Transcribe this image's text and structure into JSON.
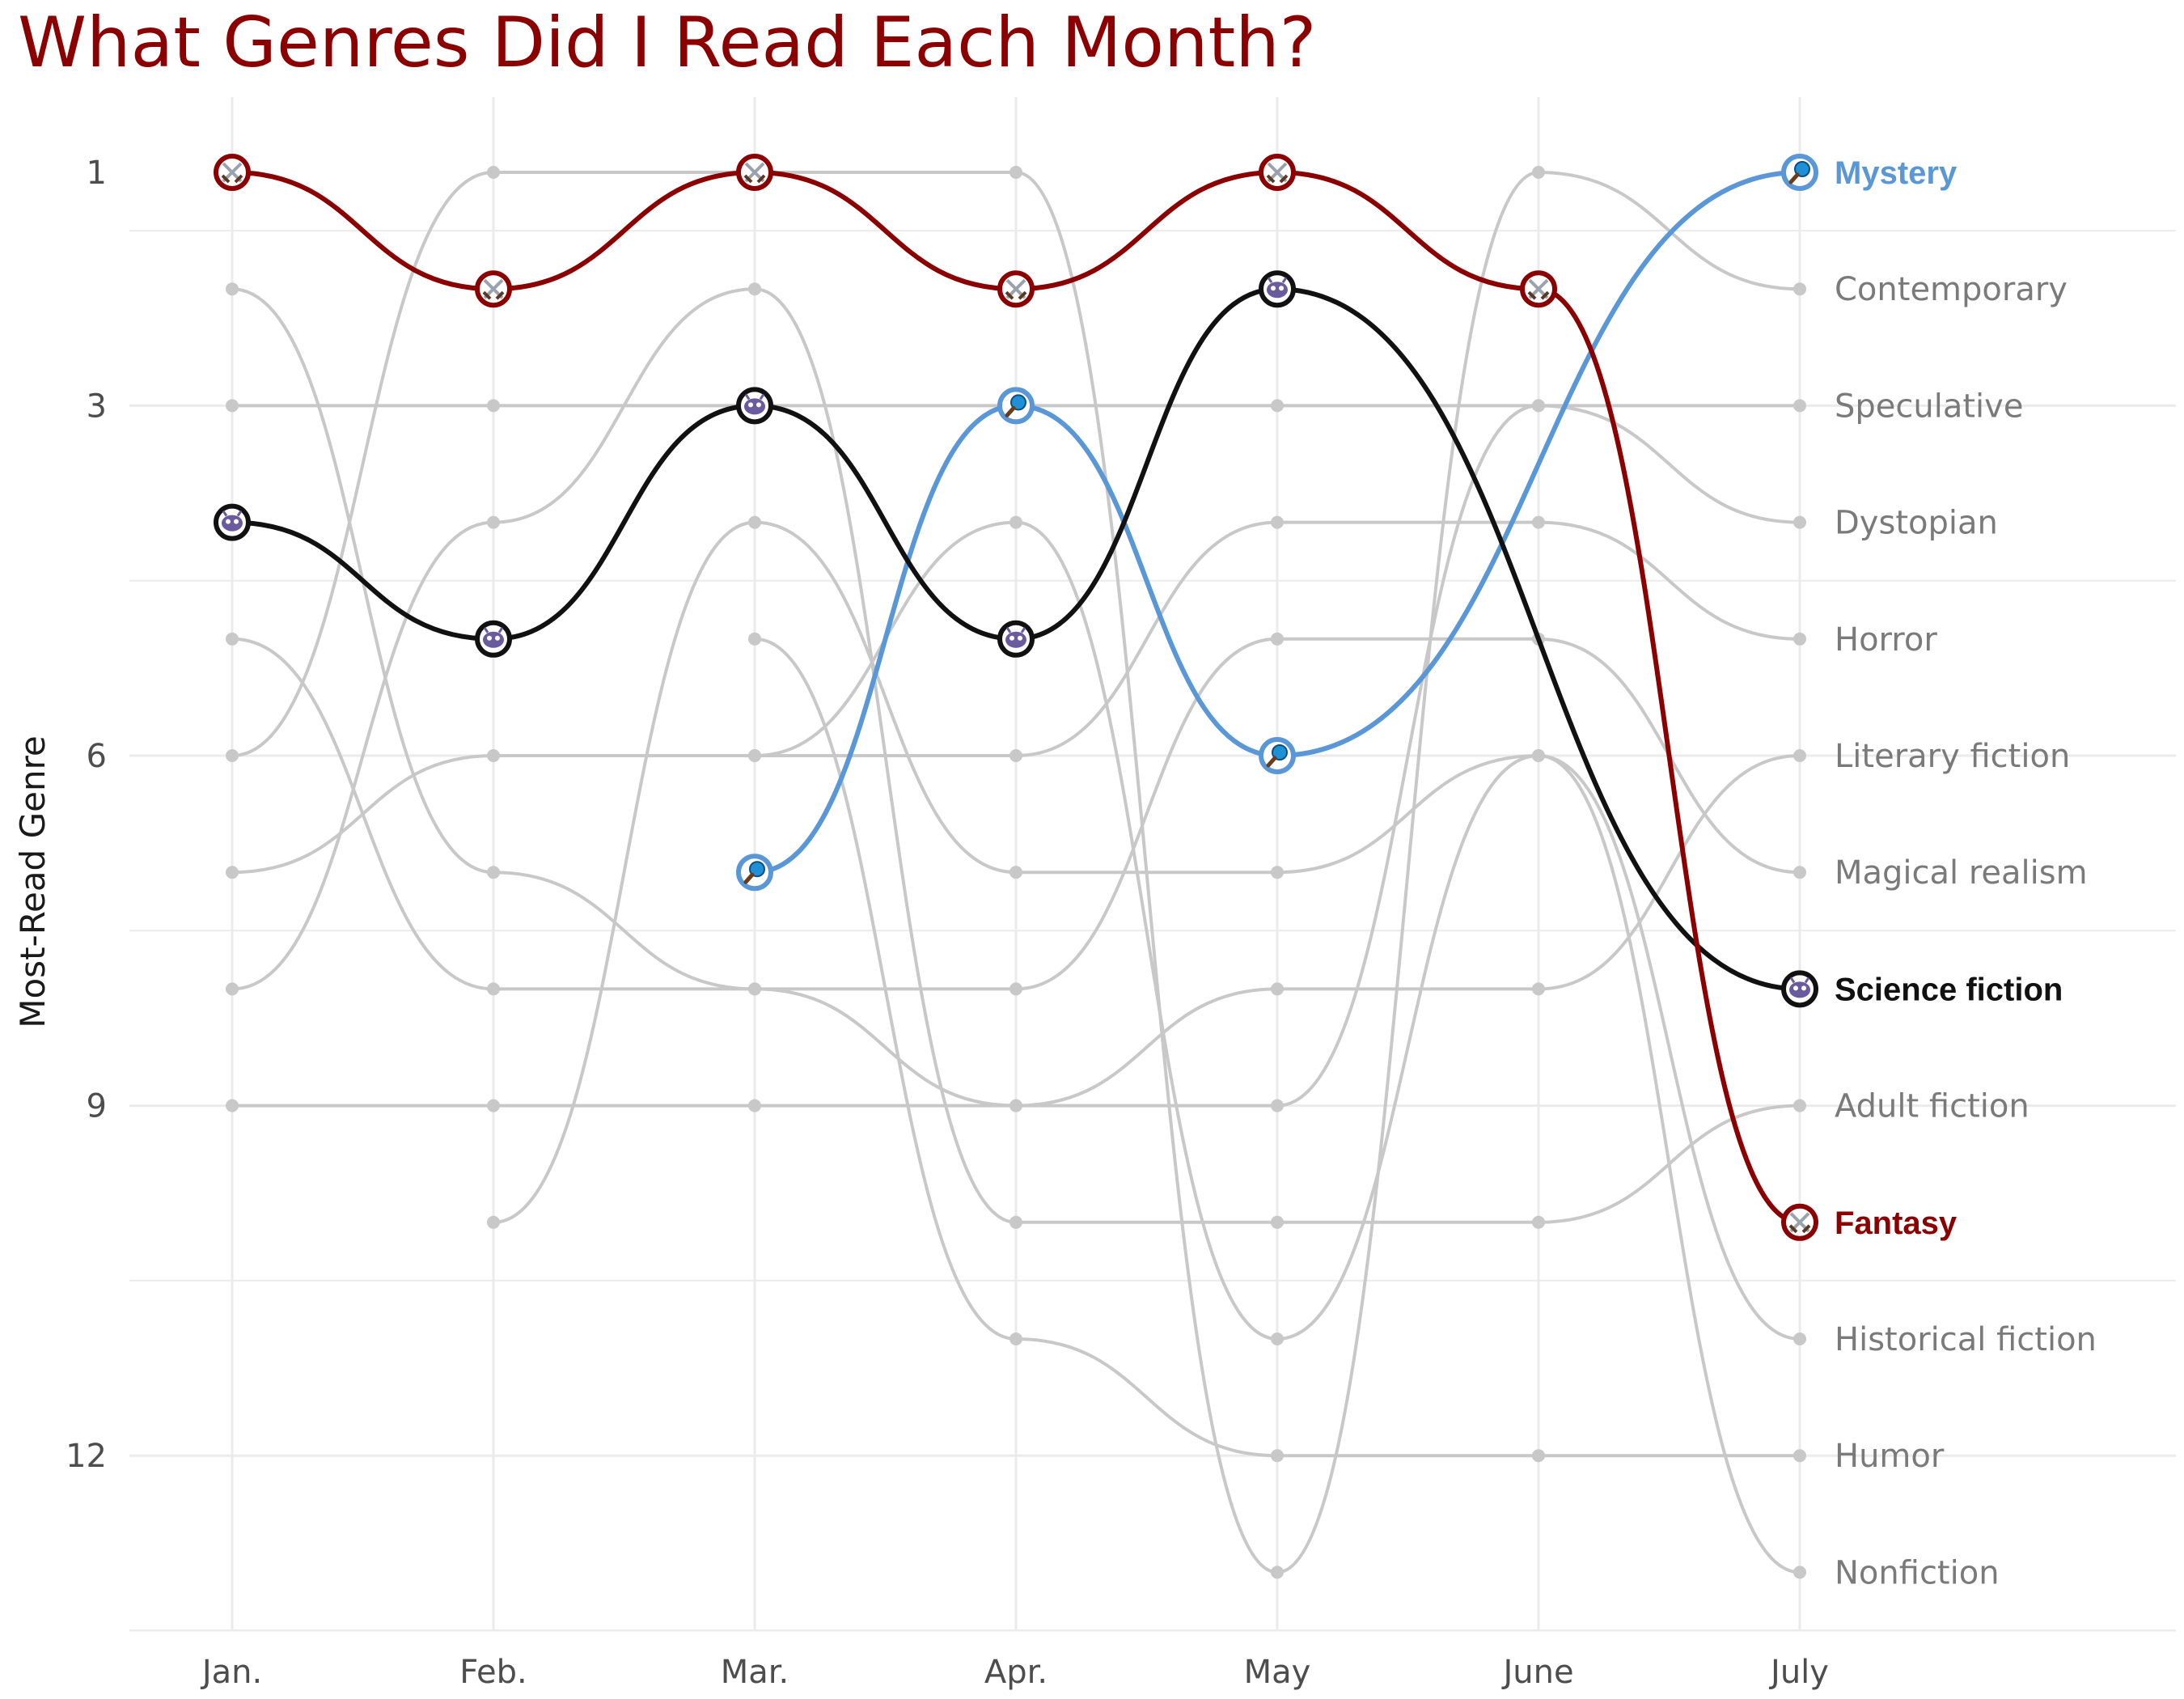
{
  "chart_data": {
    "type": "line",
    "title": "What Genres Did I Read Each Month?",
    "ylabel": "Most-Read Genre",
    "xlabel": "",
    "categories": [
      "Jan.",
      "Feb.",
      "Mar.",
      "Apr.",
      "May",
      "June",
      "July"
    ],
    "ylim": [
      0.5,
      13.5
    ],
    "y_reversed": true,
    "y_ticks": [
      1,
      3,
      6,
      9,
      12
    ],
    "grid": true,
    "colors": {
      "title": "#8b0000",
      "background_series": "#c8c8c8",
      "gridline": "#ebebeb"
    },
    "highlighted": [
      {
        "name": "Mystery",
        "color": "#5a97d6",
        "icon": "magnifying-glass-icon",
        "ranks": [
          null,
          null,
          7,
          3,
          6,
          null,
          1
        ]
      },
      {
        "name": "Science fiction",
        "color": "#111111",
        "icon": "alien-icon",
        "ranks": [
          4,
          5,
          3,
          5,
          2,
          null,
          8
        ]
      },
      {
        "name": "Fantasy",
        "color": "#8b0000",
        "icon": "crossed-swords-icon",
        "ranks": [
          1,
          2,
          1,
          2,
          1,
          2,
          10
        ]
      }
    ],
    "background_series": [
      {
        "name": "Contemporary",
        "ranks": [
          6,
          1,
          1,
          1,
          13,
          1,
          2
        ]
      },
      {
        "name": "Speculative",
        "ranks": [
          3,
          3,
          3,
          3,
          3,
          3,
          3
        ]
      },
      {
        "name": "Dystopian",
        "ranks": [
          2,
          7,
          8,
          9,
          9,
          3,
          4
        ]
      },
      {
        "name": "Horror",
        "ranks": [
          7,
          6,
          6,
          6,
          4,
          4,
          5
        ]
      },
      {
        "name": "Literary fiction",
        "ranks": [
          9,
          9,
          9,
          9,
          8,
          8,
          6
        ]
      },
      {
        "name": "Magical realism",
        "ranks": [
          5,
          8,
          8,
          8,
          5,
          5,
          7
        ]
      },
      {
        "name": "Adult fiction",
        "ranks": [
          8,
          4,
          2,
          10,
          10,
          10,
          9
        ]
      },
      {
        "name": "Historical fiction",
        "ranks": [
          null,
          10,
          4,
          7,
          7,
          6,
          11
        ]
      },
      {
        "name": "Humor",
        "ranks": [
          null,
          null,
          5,
          11,
          12,
          12,
          12
        ]
      },
      {
        "name": "Nonfiction",
        "ranks": [
          null,
          null,
          6,
          4,
          11,
          6,
          13
        ]
      }
    ],
    "end_labels": [
      {
        "rank": 1,
        "text": "Mystery",
        "highlight": true,
        "color": "#5a97d6"
      },
      {
        "rank": 2,
        "text": "Contemporary",
        "highlight": false
      },
      {
        "rank": 3,
        "text": "Speculative",
        "highlight": false
      },
      {
        "rank": 4,
        "text": "Dystopian",
        "highlight": false
      },
      {
        "rank": 5,
        "text": "Horror",
        "highlight": false
      },
      {
        "rank": 6,
        "text": "Literary fiction",
        "highlight": false
      },
      {
        "rank": 7,
        "text": "Magical realism",
        "highlight": false
      },
      {
        "rank": 8,
        "text": "Science fiction",
        "highlight": true,
        "color": "#111111"
      },
      {
        "rank": 9,
        "text": "Adult fiction",
        "highlight": false
      },
      {
        "rank": 10,
        "text": "Fantasy",
        "highlight": true,
        "color": "#8b0000"
      },
      {
        "rank": 11,
        "text": "Historical fiction",
        "highlight": false
      },
      {
        "rank": 12,
        "text": "Humor",
        "highlight": false
      },
      {
        "rank": 13,
        "text": "Nonfiction",
        "highlight": false
      }
    ]
  }
}
